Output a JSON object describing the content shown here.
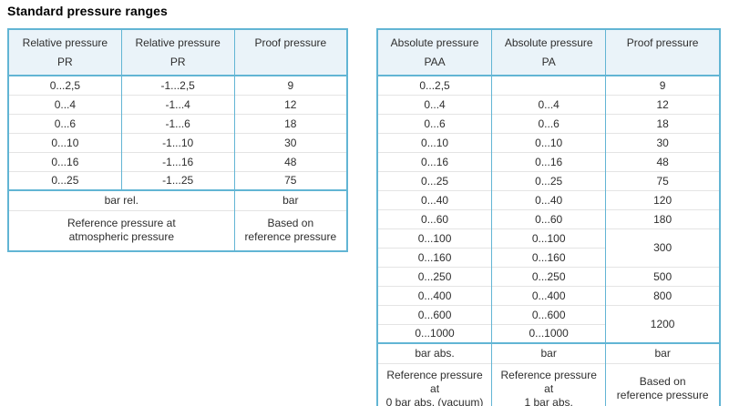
{
  "page": {
    "title": "Standard pressure ranges"
  },
  "colors": {
    "border": "#62b5d4",
    "header-bg": "#eaf3f9",
    "divider": "#e4e4e4",
    "text": "#2e2e2e"
  },
  "relative_table": {
    "name": "relative-pressure-table",
    "headers": [
      {
        "line1": "Relative pressure",
        "line2": "PR"
      },
      {
        "line1": "Relative pressure",
        "line2": "PR"
      },
      {
        "line1": "Proof pressure",
        "line2": ""
      }
    ],
    "rows": [
      [
        "0...2,5",
        "-1...2,5",
        "9"
      ],
      [
        "0...4",
        "-1...4",
        "12"
      ],
      [
        "0...6",
        "-1...6",
        "18"
      ],
      [
        "0...10",
        "-1...10",
        "30"
      ],
      [
        "0...16",
        "-1...16",
        "48"
      ],
      [
        "0...25",
        "-1...25",
        "75"
      ]
    ],
    "footer": [
      {
        "cells": [
          {
            "text": "bar rel.",
            "colspan": 2
          },
          {
            "text": "bar"
          }
        ]
      },
      {
        "cells": [
          {
            "text": "Reference pressure at\natmospheric pressure",
            "colspan": 2
          },
          {
            "text": "Based on\nreference pressure"
          }
        ]
      }
    ]
  },
  "absolute_table": {
    "name": "absolute-pressure-table",
    "headers": [
      {
        "line1": "Absolute pressure",
        "line2": "PAA"
      },
      {
        "line1": "Absolute pressure",
        "line2": "PA"
      },
      {
        "line1": "Proof pressure",
        "line2": ""
      }
    ],
    "rows": [
      [
        "0...2,5",
        "",
        "9"
      ],
      [
        "0...4",
        "0...4",
        "12"
      ],
      [
        "0...6",
        "0...6",
        "18"
      ],
      [
        "0...10",
        "0...10",
        "30"
      ],
      [
        "0...16",
        "0...16",
        "48"
      ],
      [
        "0...25",
        "0...25",
        "75"
      ],
      [
        "0...40",
        "0...40",
        "120"
      ],
      [
        "0...60",
        "0...60",
        "180"
      ],
      [
        "0...100",
        "0...100",
        {
          "text": "300",
          "rowspan": 2
        }
      ],
      [
        "0...160",
        "0...160",
        null
      ],
      [
        "0...250",
        "0...250",
        "500"
      ],
      [
        "0...400",
        "0...400",
        "800"
      ],
      [
        "0...600",
        "0...600",
        {
          "text": "1200",
          "rowspan": 2
        }
      ],
      [
        "0...1000",
        "0...1000",
        null
      ]
    ],
    "footer": [
      {
        "cells": [
          {
            "text": "bar abs."
          },
          {
            "text": "bar"
          },
          {
            "text": "bar"
          }
        ]
      },
      {
        "cells": [
          {
            "text": "Reference pressure at\n0 bar abs. (vacuum)"
          },
          {
            "text": "Reference pressure at\n1 bar abs."
          },
          {
            "text": "Based on\nreference pressure"
          }
        ]
      }
    ]
  }
}
